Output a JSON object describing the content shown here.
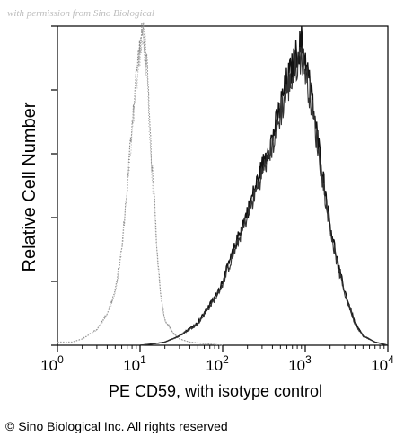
{
  "chart_data": {
    "type": "area",
    "title": "",
    "xlabel": "PE CD59, with isotype control",
    "ylabel": "Relative Cell Number",
    "x_scale": "log",
    "xlim": [
      1,
      10000
    ],
    "ylim": [
      0,
      1
    ],
    "x_ticks": [
      {
        "value": 1,
        "base": "10",
        "exp": "0"
      },
      {
        "value": 10,
        "base": "10",
        "exp": "1"
      },
      {
        "value": 100,
        "base": "10",
        "exp": "2"
      },
      {
        "value": 1000,
        "base": "10",
        "exp": "3"
      },
      {
        "value": 10000,
        "base": "10",
        "exp": "4"
      }
    ],
    "grid": false,
    "legend": "none",
    "series": [
      {
        "style": "light-gray-dotted",
        "color": "#8a8a8a",
        "x": [
          1,
          1.5,
          2,
          3,
          4,
          5,
          6,
          7,
          8,
          9,
          10,
          11,
          12,
          13,
          14,
          15,
          16,
          18,
          20,
          25,
          30,
          40,
          60,
          100
        ],
        "y": [
          0.01,
          0.01,
          0.02,
          0.05,
          0.1,
          0.17,
          0.3,
          0.5,
          0.7,
          0.85,
          0.94,
          0.99,
          0.9,
          0.7,
          0.55,
          0.45,
          0.3,
          0.15,
          0.08,
          0.04,
          0.02,
          0.01,
          0.005,
          0
        ]
      },
      {
        "style": "dark-noisy",
        "color": "#111111",
        "x": [
          10,
          15,
          20,
          30,
          50,
          80,
          100,
          150,
          200,
          300,
          400,
          500,
          600,
          700,
          800,
          900,
          1000,
          1200,
          1500,
          2000,
          2500,
          3000,
          4000,
          5000,
          7000,
          10000
        ],
        "y": [
          0,
          0.005,
          0.01,
          0.03,
          0.07,
          0.15,
          0.2,
          0.33,
          0.42,
          0.56,
          0.65,
          0.75,
          0.83,
          0.87,
          0.92,
          0.95,
          0.9,
          0.78,
          0.6,
          0.38,
          0.25,
          0.17,
          0.07,
          0.03,
          0.01,
          0
        ]
      }
    ]
  },
  "footer": {
    "copyright": "© Sino Biological Inc. All rights reserved"
  }
}
